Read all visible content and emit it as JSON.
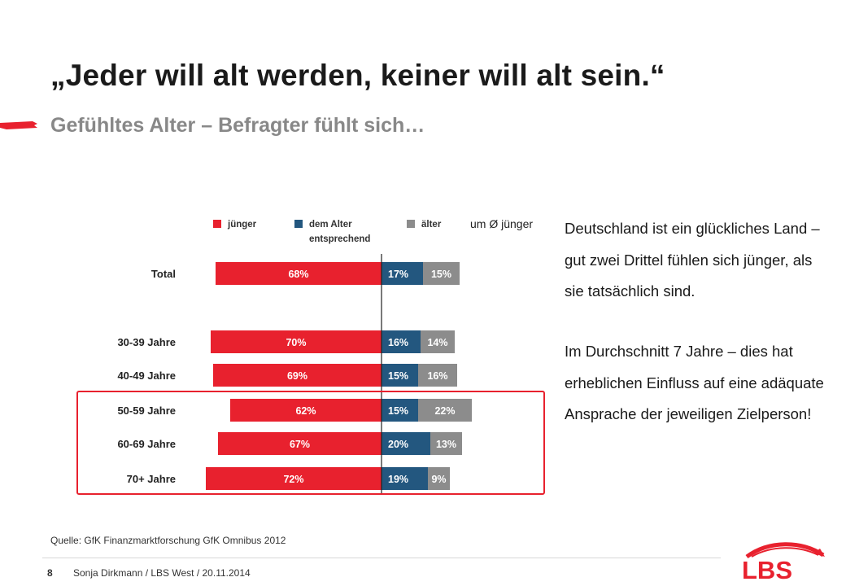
{
  "title": "„Jeder will alt werden, keiner will alt sein.“",
  "subtitle": "Gefühltes Alter – Befragter fühlt sich…",
  "paragraph1": "Deutschland ist ein glückliches Land – gut zwei Drittel fühlen sich jünger, als sie tatsächlich sind.",
  "paragraph2": "Im Durchschnitt  7 Jahre – dies hat erheblichen Einfluss auf eine adäquate Ansprache der jeweiligen Zielperson!",
  "source": "Quelle:  GfK Finanzmarktforschung GfK Omnibus 2012",
  "footer_page": "8",
  "footer_text": "Sonja Dirkmann  / LBS West / 20.11.2014",
  "logo_text": "LBS",
  "colors": {
    "juenger": "#e8212e",
    "entsprechend": "#23577f",
    "aelter": "#8c8c8c",
    "brand": "#e8212e"
  },
  "chart_data": {
    "type": "bar",
    "orientation": "horizontal-diverging",
    "legend": [
      {
        "label": "jünger",
        "color": "#e8212e"
      },
      {
        "label": "dem Alter entsprechend",
        "color": "#23577f"
      },
      {
        "label": "älter",
        "color": "#8c8c8c"
      }
    ],
    "extra_column_label": "um Ø jünger",
    "categories": [
      "Total",
      "30-39 Jahre",
      "40-49 Jahre",
      "50-59 Jahre",
      "60-69 Jahre",
      "70+ Jahre"
    ],
    "series": [
      {
        "name": "jünger",
        "values": [
          68,
          70,
          69,
          62,
          67,
          72
        ],
        "labels": [
          "68%",
          "70%",
          "69%",
          "62%",
          "67%",
          "72%"
        ]
      },
      {
        "name": "dem Alter entsprechend",
        "values": [
          17,
          16,
          15,
          15,
          20,
          19
        ],
        "labels": [
          "17%",
          "16%",
          "15%",
          "15%",
          "20%",
          "19%"
        ]
      },
      {
        "name": "älter",
        "values": [
          15,
          14,
          16,
          22,
          13,
          9
        ],
        "labels": [
          "15%",
          "14%",
          "16%",
          "22%",
          "13%",
          "9%"
        ]
      }
    ],
    "highlighted_categories": [
      "50-59 Jahre",
      "60-69 Jahre",
      "70+ Jahre"
    ]
  }
}
